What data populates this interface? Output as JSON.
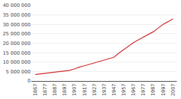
{
  "chart_data": {
    "type": "line",
    "x": [
      1867,
      1872,
      1877,
      1882,
      1887,
      1892,
      1897,
      1902,
      1907,
      1912,
      1917,
      1922,
      1927,
      1932,
      1937,
      1942,
      1947,
      1952,
      1957,
      1962,
      1967,
      1972,
      1977,
      1982,
      1987,
      1992,
      1997,
      2002,
      2007
    ],
    "values": [
      3463000,
      3754000,
      4006000,
      4375000,
      4823000,
      5095000,
      5371000,
      5651000,
      6411000,
      7389000,
      8060000,
      8788000,
      9637000,
      10376000,
      10991000,
      11654000,
      12551000,
      14785000,
      16610000,
      18583000,
      20378000,
      21802000,
      23297000,
      24819000,
      26101000,
      28031000,
      30011000,
      31414000,
      32976000
    ],
    "color": "#cc2222",
    "xlim": [
      1863,
      2011
    ],
    "xticks": [
      1867,
      1877,
      1887,
      1897,
      1907,
      1917,
      1927,
      1937,
      1947,
      1957,
      1967,
      1977,
      1987,
      1997,
      2007
    ],
    "ylim": [
      0,
      40000000
    ],
    "yticks": [
      0,
      {
        "value": 5000000,
        "label": "5 000 000"
      },
      {
        "value": 10000000,
        "label": "10 000 000"
      },
      {
        "value": 15000000,
        "label": "15 000 000"
      },
      {
        "value": 20000000,
        "label": "20 000 000"
      },
      {
        "value": 25000000,
        "label": "25 000 000"
      },
      {
        "value": 30000000,
        "label": "30 000 000"
      },
      {
        "value": 35000000,
        "label": "35 000 000"
      },
      {
        "value": 40000000,
        "label": "40 000 000"
      }
    ],
    "grid": "y"
  }
}
